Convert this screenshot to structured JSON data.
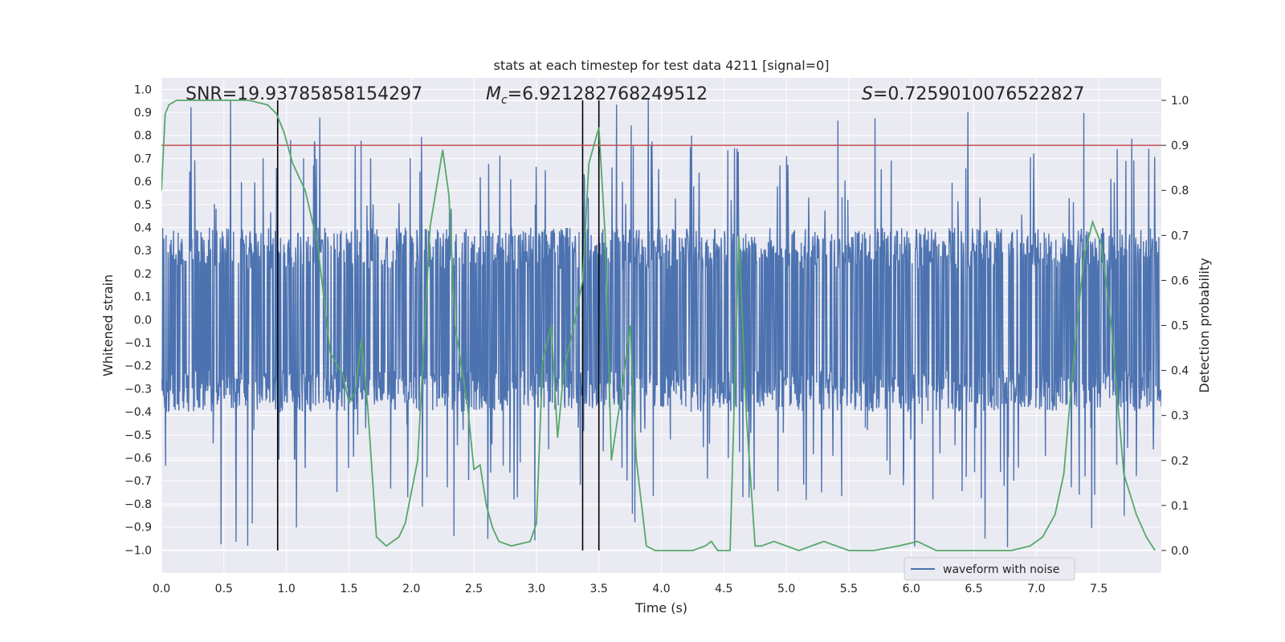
{
  "chart_data": {
    "type": "line",
    "title": "stats at each timestep for test data 4211 [signal=0]",
    "xlabel": "Time (s)",
    "ylabel_left": "Whitened strain",
    "ylabel_right": "Detection probability",
    "xlim": [
      0.0,
      8.0
    ],
    "ylim_left": [
      -1.1,
      1.05
    ],
    "ylim_right": [
      -0.05,
      1.05
    ],
    "x_ticks": [
      "0.0",
      "0.5",
      "1.0",
      "1.5",
      "2.0",
      "2.5",
      "3.0",
      "3.5",
      "4.0",
      "4.5",
      "5.0",
      "5.5",
      "6.0",
      "6.5",
      "7.0",
      "7.5"
    ],
    "y_ticks_left": [
      "1.0",
      "0.9",
      "0.8",
      "0.7",
      "0.6",
      "0.5",
      "0.4",
      "0.3",
      "0.2",
      "0.1",
      "0.0",
      "−0.1",
      "−0.2",
      "−0.3",
      "−0.4",
      "−0.5",
      "−0.6",
      "−0.7",
      "−0.8",
      "−0.9",
      "−1.0"
    ],
    "y_ticks_right": [
      "1.0",
      "0.9",
      "0.8",
      "0.7",
      "0.6",
      "0.5",
      "0.4",
      "0.3",
      "0.2",
      "0.1",
      "0.0"
    ],
    "grid": true,
    "legend": {
      "position": "lower-right",
      "entries": [
        "waveform with noise"
      ]
    },
    "annotations": {
      "snr": "SNR=19.93785858154297",
      "mc_symbol": "M",
      "mc_subscript": "c",
      "mc_value": "=6.921282768249512",
      "s_symbol": "S",
      "s_value": "=0.7259010076522827"
    },
    "threshold_line": {
      "y_right": 0.9,
      "color": "#c44e52"
    },
    "vertical_lines_x": [
      0.93,
      3.37,
      3.5
    ],
    "vertical_line_color": "#000000",
    "waveform": {
      "name": "waveform with noise",
      "color": "#4c72b0",
      "x_range": [
        0.0,
        8.0
      ],
      "typical_amplitude": 0.4,
      "peak_amplitude_max": 1.0,
      "peak_amplitude_min": -1.0
    },
    "detection_probability": {
      "color": "#55a868",
      "x": [
        0.0,
        0.03,
        0.06,
        0.12,
        0.3,
        0.5,
        0.7,
        0.85,
        0.92,
        0.98,
        1.05,
        1.15,
        1.25,
        1.35,
        1.45,
        1.5,
        1.55,
        1.6,
        1.65,
        1.72,
        1.8,
        1.9,
        1.95,
        2.05,
        2.15,
        2.25,
        2.3,
        2.35,
        2.45,
        2.5,
        2.55,
        2.6,
        2.65,
        2.7,
        2.8,
        2.95,
        3.0,
        3.05,
        3.12,
        3.17,
        3.22,
        3.3,
        3.37,
        3.42,
        3.5,
        3.55,
        3.6,
        3.68,
        3.75,
        3.8,
        3.88,
        3.95,
        4.1,
        4.25,
        4.35,
        4.4,
        4.45,
        4.55,
        4.62,
        4.68,
        4.75,
        4.8,
        4.9,
        5.0,
        5.1,
        5.2,
        5.3,
        5.5,
        5.7,
        5.9,
        6.05,
        6.2,
        6.4,
        6.6,
        6.8,
        6.95,
        7.05,
        7.15,
        7.22,
        7.3,
        7.38,
        7.45,
        7.52,
        7.6,
        7.7,
        7.8,
        7.88,
        7.95
      ],
      "y": [
        0.8,
        0.97,
        0.99,
        1.0,
        1.0,
        1.0,
        1.0,
        0.99,
        0.97,
        0.93,
        0.86,
        0.8,
        0.68,
        0.44,
        0.39,
        0.33,
        0.35,
        0.47,
        0.32,
        0.03,
        0.01,
        0.03,
        0.06,
        0.2,
        0.72,
        0.89,
        0.79,
        0.5,
        0.32,
        0.18,
        0.19,
        0.1,
        0.05,
        0.02,
        0.01,
        0.02,
        0.06,
        0.42,
        0.5,
        0.25,
        0.4,
        0.5,
        0.6,
        0.86,
        0.94,
        0.7,
        0.2,
        0.35,
        0.5,
        0.2,
        0.01,
        0.0,
        0.0,
        0.0,
        0.01,
        0.02,
        0.0,
        0.0,
        0.7,
        0.3,
        0.01,
        0.01,
        0.02,
        0.01,
        0.0,
        0.01,
        0.02,
        0.0,
        0.0,
        0.01,
        0.02,
        0.0,
        0.0,
        0.0,
        0.0,
        0.01,
        0.03,
        0.08,
        0.17,
        0.43,
        0.65,
        0.73,
        0.68,
        0.5,
        0.17,
        0.08,
        0.03,
        0.0
      ]
    },
    "colors": {
      "plot_bg": "#eaeaf2",
      "grid": "#ffffff"
    }
  }
}
